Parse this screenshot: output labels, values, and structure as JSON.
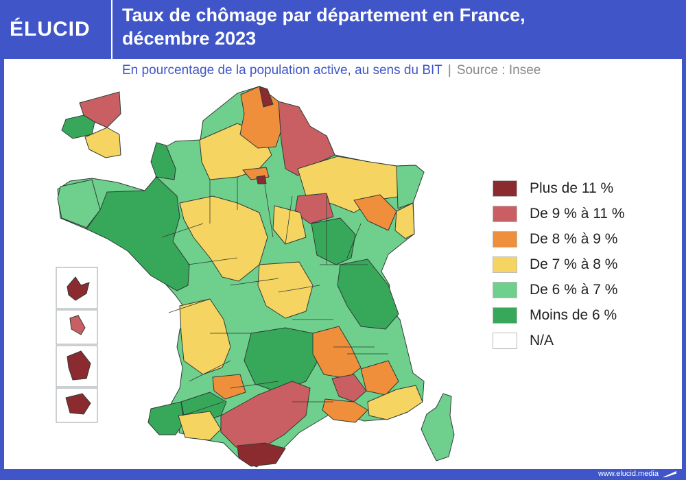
{
  "header": {
    "logo": "ÉLUCID",
    "title_line1": "Taux de chômage par département en France,",
    "title_line2": "décembre 2023"
  },
  "subtitle": {
    "text": "En pourcentage de la population active, au sens du BIT",
    "separator": "|",
    "source": "Source : Insee"
  },
  "legend": [
    {
      "label": "Plus de 11 %",
      "color": "#8b2b2f"
    },
    {
      "label": "De 9 % à 11 %",
      "color": "#c95f63"
    },
    {
      "label": "De 8 % à 9 %",
      "color": "#ef8e3b"
    },
    {
      "label": "De 7 % à 8 %",
      "color": "#f5d461"
    },
    {
      "label": "De 6 % à 7 %",
      "color": "#6fcf8d"
    },
    {
      "label": "Moins de 6 %",
      "color": "#37a85a"
    },
    {
      "label": "N/A",
      "color": "#ffffff"
    }
  ],
  "colors": {
    "brand": "#3f55c8",
    "over11": "#8b2b2f",
    "from9to11": "#c95f63",
    "from8to9": "#ef8e3b",
    "from7to8": "#f5d461",
    "from6to7": "#6fcf8d",
    "under6": "#37a85a",
    "border": "#2f3b35"
  },
  "footer": {
    "url": "www.elucid.media"
  }
}
